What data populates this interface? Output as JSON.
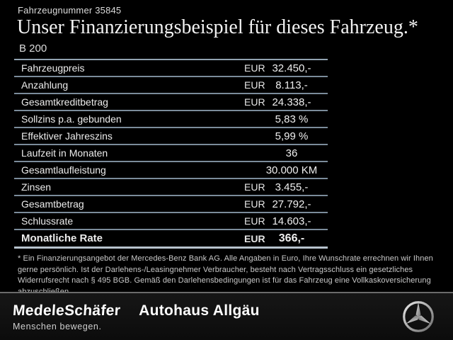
{
  "header": {
    "vehicle_number": "Fahrzeugnummer 35845",
    "title": "Unser Finanzierungsbeispiel für dieses Fahrzeug.*",
    "model": "B 200"
  },
  "table": {
    "rows": [
      {
        "label": "Fahrzeugpreis",
        "currency": "EUR",
        "value": "32.450,-"
      },
      {
        "label": "Anzahlung",
        "currency": "EUR",
        "value": "8.113,-"
      },
      {
        "label": "Gesamtkreditbetrag",
        "currency": "EUR",
        "value": "24.338,-"
      },
      {
        "label": "Sollzins p.a. gebunden",
        "currency": "",
        "value": "5,83 %"
      },
      {
        "label": "Effektiver Jahreszins",
        "currency": "",
        "value": "5,99 %"
      },
      {
        "label": "Laufzeit in Monaten",
        "currency": "",
        "value": "36"
      },
      {
        "label": "Gesamtlaufleistung",
        "currency": "",
        "value": "30.000 KM"
      },
      {
        "label": "Zinsen",
        "currency": "EUR",
        "value": "3.455,-"
      },
      {
        "label": "Gesamtbetrag",
        "currency": "EUR",
        "value": "27.792,-"
      },
      {
        "label": "Schlussrate",
        "currency": "EUR",
        "value": "14.603,-"
      },
      {
        "label": "Monatliche Rate",
        "currency": "EUR",
        "value": "366,-",
        "emphasis": true
      }
    ]
  },
  "footnote": "* Ein Finanzierungsangebot der Mercedes-Benz Bank AG. Alle Angaben in Euro, Ihre Wunschrate errechnen wir Ihnen gerne persönlich. Ist der Darlehens-/Leasingnehmer Verbraucher, besteht nach Vertragsschluss ein gesetzliches Widerrufsrecht nach § 495 BGB. Gemäß den Darlehensbedingungen ist für das Fahrzeug eine Vollkaskoversicherung abzuschließen.",
  "footer": {
    "dealer_name": "MedeleSchäfer",
    "dealer_tagline": "Menschen bewegen.",
    "dealer_location": "Autohaus Allgäu",
    "brand_icon": "mercedes-star-icon"
  },
  "colors": {
    "background": "#000000",
    "table_line": "#7b8c9b",
    "table_line_strong": "#b7c3cd",
    "text_primary": "#ececec",
    "text_muted": "#c9c9c9",
    "footer_background": "#101010",
    "footer_separator": "#6b6b6b",
    "logo_silver": "#bfbfbf"
  }
}
